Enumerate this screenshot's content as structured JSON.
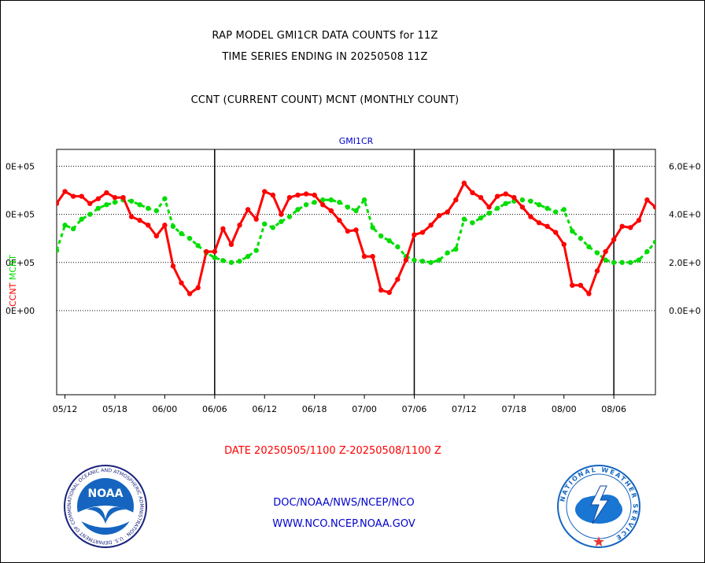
{
  "titles": {
    "line1": "RAP MODEL GMI1CR DATA COUNTS for 11Z",
    "line2": "TIME SERIES ENDING IN 20250508 11Z",
    "line3": "CCNT (CURRENT COUNT) MCNT (MONTHLY COUNT)"
  },
  "footer": {
    "date_range": "DATE 20250505/1100 Z-20250508/1100 Z",
    "link1": "DOC/NOAA/NWS/NCEP/NCO",
    "link2": "WWW.NCO.NCEP.NOAA.GOV"
  },
  "logos": {
    "noaa": "NOAA",
    "noaa_ring": "NATIONAL OCEANIC AND ATMOSPHERIC ADMINISTRATION · U.S. DEPARTMENT OF COMMERCE ·",
    "nws_ring": "NATIONAL WEATHER SERVICE"
  },
  "colors": {
    "ccnt": "#ff0000",
    "mcnt": "#00dd00",
    "title_blue": "#0000cc",
    "footer_red": "#ff0000",
    "footer_blue": "#0000cc"
  },
  "chart_data": {
    "type": "line",
    "title": "GMI1CR",
    "ylabel_left": [
      "CCNT",
      "MCNT"
    ],
    "ylim": [
      -350000,
      670000
    ],
    "yticks_left": [
      "0E+00",
      "0E+05",
      "0E+05",
      "0E+05"
    ],
    "yticks_right": [
      "0.0E+0",
      "2.0E+0",
      "4.0E+0",
      "6.0E+0"
    ],
    "ytick_values": [
      0,
      200000,
      400000,
      600000
    ],
    "xticks": [
      "05/12",
      "05/18",
      "06/00",
      "06/06",
      "06/12",
      "06/18",
      "07/00",
      "07/06",
      "07/12",
      "07/18",
      "08/00",
      "08/06"
    ],
    "xlim": [
      0,
      72
    ],
    "xtick_positions": [
      1,
      7,
      13,
      19,
      25,
      31,
      37,
      43,
      49,
      55,
      61,
      67
    ],
    "day_boundaries": [
      19,
      43,
      67
    ],
    "grid": "horizontal-dotted",
    "series": [
      {
        "name": "CCNT",
        "color": "#ff0000",
        "x": [
          0,
          1,
          2,
          3,
          4,
          5,
          6,
          7,
          8,
          9,
          10,
          11,
          12,
          13,
          14,
          15,
          16,
          17,
          18,
          19,
          20,
          21,
          22,
          23,
          24,
          25,
          26,
          27,
          28,
          29,
          30,
          31,
          32,
          33,
          34,
          35,
          36,
          37,
          38,
          39,
          40,
          41,
          42,
          43,
          44,
          45,
          46,
          47,
          48,
          49,
          50,
          51,
          52,
          53,
          54,
          55,
          56,
          57,
          58,
          59,
          60,
          61,
          62,
          63,
          64,
          65,
          66,
          67,
          68,
          69,
          70,
          71,
          72
        ],
        "values": [
          445000,
          495000,
          475000,
          475000,
          445000,
          465000,
          490000,
          470000,
          470000,
          390000,
          375000,
          355000,
          310000,
          355000,
          185000,
          115000,
          70000,
          95000,
          245000,
          245000,
          340000,
          275000,
          355000,
          420000,
          380000,
          495000,
          480000,
          400000,
          470000,
          480000,
          485000,
          480000,
          440000,
          415000,
          375000,
          330000,
          335000,
          225000,
          225000,
          85000,
          75000,
          130000,
          210000,
          315000,
          325000,
          355000,
          395000,
          410000,
          460000,
          530000,
          490000,
          470000,
          430000,
          475000,
          485000,
          470000,
          430000,
          390000,
          365000,
          350000,
          325000,
          275000,
          105000,
          105000,
          70000,
          165000,
          245000,
          295000,
          350000,
          345000,
          375000,
          460000,
          430000
        ]
      },
      {
        "name": "MCNT",
        "color": "#00dd00",
        "x": [
          0,
          1,
          2,
          3,
          4,
          5,
          6,
          7,
          8,
          9,
          10,
          11,
          12,
          13,
          14,
          15,
          16,
          17,
          18,
          19,
          20,
          21,
          22,
          23,
          24,
          25,
          26,
          27,
          28,
          29,
          30,
          31,
          32,
          33,
          34,
          35,
          36,
          37,
          38,
          39,
          40,
          41,
          42,
          43,
          44,
          45,
          46,
          47,
          48,
          49,
          50,
          51,
          52,
          53,
          54,
          55,
          56,
          57,
          58,
          59,
          60,
          61,
          62,
          63,
          64,
          65,
          66,
          67,
          68,
          69,
          70,
          71,
          72
        ],
        "values": [
          250000,
          355000,
          340000,
          380000,
          400000,
          425000,
          440000,
          450000,
          460000,
          455000,
          440000,
          425000,
          415000,
          465000,
          350000,
          320000,
          300000,
          270000,
          240000,
          220000,
          208000,
          200000,
          205000,
          225000,
          250000,
          360000,
          345000,
          370000,
          390000,
          420000,
          440000,
          450000,
          460000,
          460000,
          450000,
          430000,
          415000,
          460000,
          345000,
          310000,
          290000,
          265000,
          225000,
          210000,
          205000,
          200000,
          210000,
          240000,
          255000,
          380000,
          365000,
          385000,
          405000,
          425000,
          445000,
          455000,
          460000,
          455000,
          440000,
          425000,
          410000,
          420000,
          330000,
          300000,
          265000,
          240000,
          210000,
          200000,
          200000,
          200000,
          210000,
          245000,
          285000
        ]
      }
    ]
  }
}
